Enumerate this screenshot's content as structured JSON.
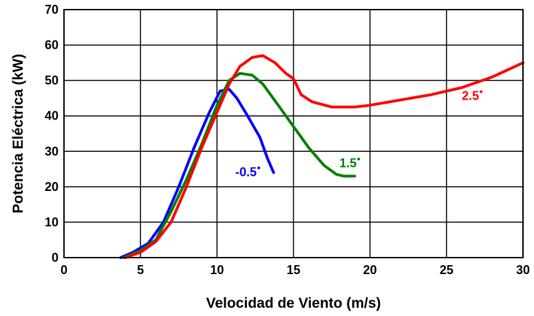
{
  "chart_data": {
    "type": "line",
    "title": "",
    "xlabel": "Velocidad de Viento (m/s)",
    "ylabel": "Potencia Eléctrica  (kW)",
    "xlim": [
      0,
      30
    ],
    "ylim": [
      0,
      70
    ],
    "xticks": [
      0,
      5,
      10,
      15,
      20,
      25,
      30
    ],
    "yticks": [
      0,
      10,
      20,
      30,
      40,
      50,
      60,
      70
    ],
    "xtick_labels": [
      "0",
      "5",
      "10",
      "15",
      "20",
      "25",
      "30"
    ],
    "ytick_labels": [
      "0",
      "10",
      "20",
      "30",
      "40",
      "50",
      "60",
      "70"
    ],
    "grid": true,
    "legend": "none",
    "series": [
      {
        "name": "-0.5°",
        "label_text": "-0.5",
        "color": "#0000ff",
        "label_at": [
          11.2,
          23
        ],
        "x": [
          3.7,
          4.5,
          5.5,
          6.5,
          7.5,
          8.5,
          9.5,
          10.2,
          10.8,
          11.3,
          12.0,
          12.8,
          13.3,
          13.7
        ],
        "y": [
          0,
          1.5,
          4,
          10,
          20,
          31,
          41,
          47,
          47.5,
          45,
          40,
          34,
          28,
          24
        ]
      },
      {
        "name": "1.5°",
        "label_text": "1.5",
        "color": "#008000",
        "label_at": [
          18,
          25.5
        ],
        "x": [
          3.9,
          5,
          6,
          7,
          8,
          9,
          10,
          10.8,
          11.5,
          12.3,
          13,
          14,
          15,
          16,
          17,
          17.8,
          18.3,
          19
        ],
        "y": [
          0,
          2,
          5,
          13,
          22,
          32,
          43,
          50,
          52,
          51.5,
          49,
          43,
          37,
          31,
          26,
          23.5,
          23,
          23
        ]
      },
      {
        "name": "2.5°",
        "label_text": "2.5",
        "color": "#ff0000",
        "label_at": [
          26,
          44.5
        ],
        "x": [
          4,
          5,
          6,
          7,
          8,
          9,
          10,
          10.8,
          11.5,
          12.3,
          13,
          13.8,
          14.5,
          15,
          15.5,
          16.2,
          17.5,
          19,
          20,
          22,
          24,
          26,
          28,
          30
        ],
        "y": [
          0,
          1.5,
          4.5,
          10,
          20,
          31,
          41,
          49,
          54,
          56.5,
          57,
          55,
          52,
          50.5,
          46,
          44,
          42.5,
          42.5,
          43,
          44.5,
          46,
          48,
          51,
          55
        ]
      }
    ]
  }
}
